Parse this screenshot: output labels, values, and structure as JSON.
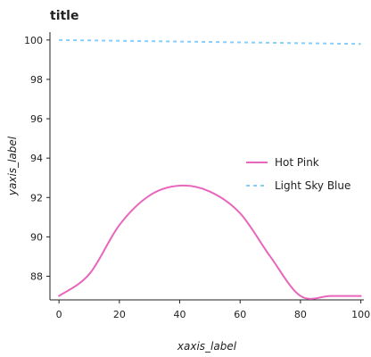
{
  "chart_data": {
    "type": "line",
    "title": "title",
    "xlabel": "xaxis_label",
    "ylabel": "yaxis_label",
    "xlim": [
      -3,
      101
    ],
    "ylim": [
      86.8,
      100.4
    ],
    "x_ticks": [
      0,
      20,
      40,
      60,
      80,
      100
    ],
    "y_ticks": [
      88,
      90,
      92,
      94,
      96,
      98,
      100
    ],
    "grid": false,
    "legend_position": "right",
    "series": [
      {
        "name": "Hot Pink",
        "color": "#e866bd",
        "dash": "solid",
        "x": [
          0,
          10,
          20,
          30,
          40,
          50,
          60,
          70,
          80,
          90,
          100
        ],
        "y": [
          87.0,
          88.1,
          90.6,
          92.1,
          92.6,
          92.3,
          91.2,
          89.0,
          87.0,
          87.0,
          87.0
        ]
      },
      {
        "name": "Light Sky Blue",
        "color": "#87cef5",
        "dash": "dashed",
        "x": [
          0,
          100
        ],
        "y": [
          100.0,
          99.8
        ]
      }
    ]
  }
}
